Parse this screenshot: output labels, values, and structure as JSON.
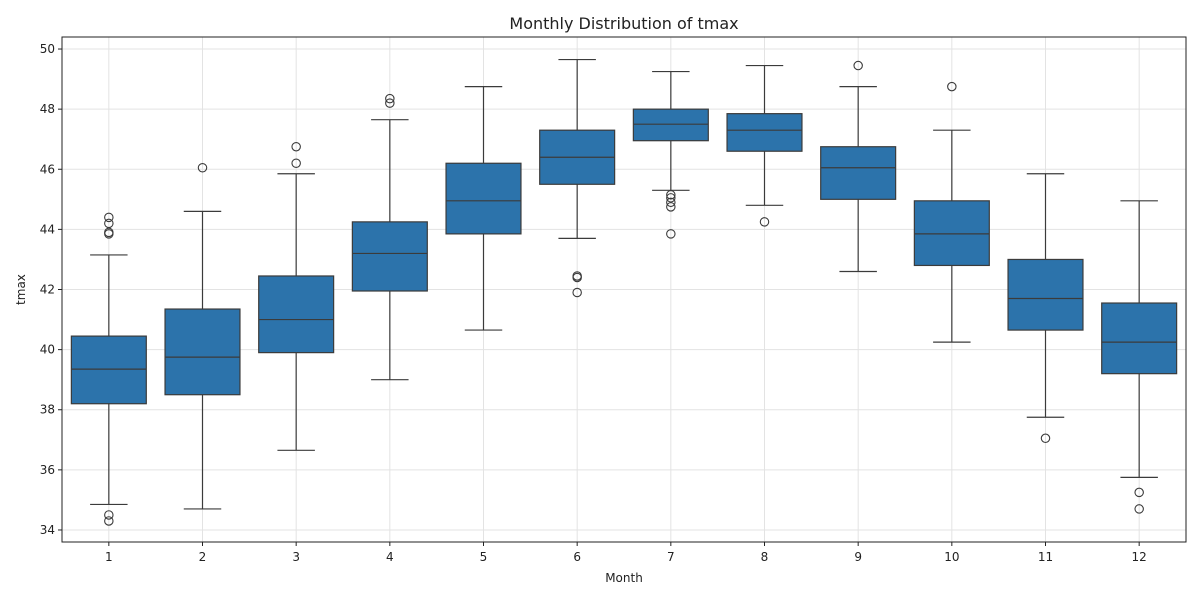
{
  "chart_data": {
    "type": "box",
    "title": "Monthly Distribution of tmax",
    "xlabel": "Month",
    "ylabel": "tmax",
    "ylim": [
      33.6,
      50.4
    ],
    "yticks": [
      34,
      36,
      38,
      40,
      42,
      44,
      46,
      48,
      50
    ],
    "grid": true,
    "box_color": "#2c73ab",
    "line_color": "#3b3b3b",
    "categories": [
      "1",
      "2",
      "3",
      "4",
      "5",
      "6",
      "7",
      "8",
      "9",
      "10",
      "11",
      "12"
    ],
    "boxes": [
      {
        "whisker_low": 34.85,
        "q1": 38.2,
        "median": 39.35,
        "q3": 40.45,
        "whisker_high": 43.15,
        "outliers": [
          44.4,
          44.2,
          43.9,
          43.85,
          34.5,
          34.3
        ]
      },
      {
        "whisker_low": 34.7,
        "q1": 38.5,
        "median": 39.75,
        "q3": 41.35,
        "whisker_high": 44.6,
        "outliers": [
          46.05
        ]
      },
      {
        "whisker_low": 36.65,
        "q1": 39.9,
        "median": 41.0,
        "q3": 42.45,
        "whisker_high": 45.85,
        "outliers": [
          46.75,
          46.2
        ]
      },
      {
        "whisker_low": 39.0,
        "q1": 41.95,
        "median": 43.2,
        "q3": 44.25,
        "whisker_high": 47.65,
        "outliers": [
          48.35,
          48.2
        ]
      },
      {
        "whisker_low": 40.65,
        "q1": 43.85,
        "median": 44.95,
        "q3": 46.2,
        "whisker_high": 48.75,
        "outliers": []
      },
      {
        "whisker_low": 43.7,
        "q1": 45.5,
        "median": 46.4,
        "q3": 47.3,
        "whisker_high": 49.65,
        "outliers": [
          42.45,
          42.4,
          41.9
        ]
      },
      {
        "whisker_low": 45.3,
        "q1": 46.95,
        "median": 47.5,
        "q3": 48.0,
        "whisker_high": 49.25,
        "outliers": [
          45.15,
          45.05,
          44.9,
          44.75,
          43.85
        ]
      },
      {
        "whisker_low": 44.8,
        "q1": 46.6,
        "median": 47.3,
        "q3": 47.85,
        "whisker_high": 49.45,
        "outliers": [
          44.25
        ]
      },
      {
        "whisker_low": 42.6,
        "q1": 45.0,
        "median": 46.05,
        "q3": 46.75,
        "whisker_high": 48.75,
        "outliers": [
          49.45
        ]
      },
      {
        "whisker_low": 40.25,
        "q1": 42.8,
        "median": 43.85,
        "q3": 44.95,
        "whisker_high": 47.3,
        "outliers": [
          48.75
        ]
      },
      {
        "whisker_low": 37.75,
        "q1": 40.65,
        "median": 41.7,
        "q3": 43.0,
        "whisker_high": 45.85,
        "outliers": [
          37.05
        ]
      },
      {
        "whisker_low": 35.75,
        "q1": 39.2,
        "median": 40.25,
        "q3": 41.55,
        "whisker_high": 44.95,
        "outliers": [
          35.25,
          34.7
        ]
      }
    ]
  }
}
